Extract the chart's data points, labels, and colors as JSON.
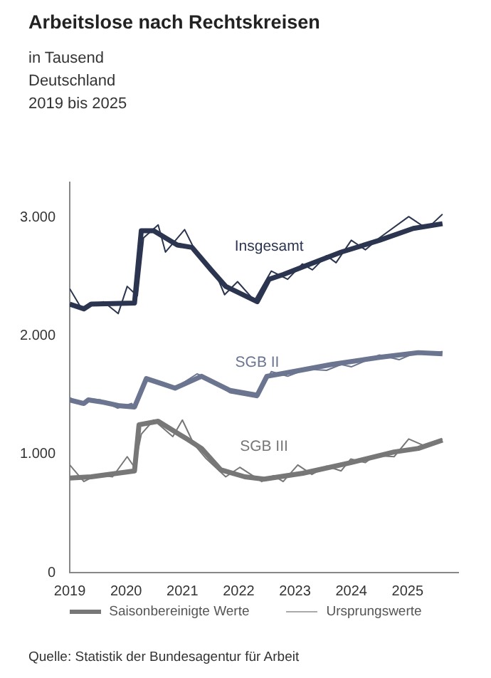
{
  "chart_data": {
    "type": "line",
    "title": "Arbeitslose nach Rechtskreisen",
    "subtitle": "in Tausend\nDeutschland\n2019 bis 2025",
    "xlim": [
      2019,
      2025.9
    ],
    "xticks": [
      2019,
      2020,
      2021,
      2022,
      2023,
      2024,
      2025
    ],
    "ylim": [
      0,
      3300
    ],
    "yticks": [
      0,
      {
        "value": 1000,
        "label": "1.000"
      },
      {
        "value": 2000,
        "label": "2.000"
      },
      {
        "value": 3000,
        "label": "3.000"
      }
    ],
    "grid": false,
    "annotations": [
      "Saisonbereinigte Werte",
      "Ursprungswerte",
      "Quelle: Statistik der Bundesagentur für Arbeit"
    ],
    "series": [
      {
        "name": "Insgesamt",
        "color": "#2b3550",
        "x": [
          2019.0,
          2019.25,
          2019.38,
          2020.15,
          2020.27,
          2020.49,
          2020.91,
          2021.17,
          2021.51,
          2021.77,
          2022.33,
          2022.54,
          2022.79,
          2023.22,
          2023.82,
          2024.5,
          2025.1,
          2025.62
        ],
        "values": [
          2270,
          2230,
          2270,
          2280,
          2890,
          2890,
          2770,
          2750,
          2560,
          2420,
          2290,
          2480,
          2520,
          2600,
          2710,
          2810,
          2910,
          2950
        ]
      },
      {
        "color": "#2b3550",
        "x": [
          2019.0,
          2019.2,
          2019.6,
          2019.86,
          2020.02,
          2020.2,
          2020.31,
          2020.57,
          2020.7,
          2021.04,
          2021.26,
          2021.6,
          2021.75,
          2021.98,
          2022.28,
          2022.58,
          2022.87,
          2023.13,
          2023.31,
          2023.56,
          2023.73,
          2024.0,
          2024.25,
          2024.5,
          2025.02,
          2025.27,
          2025.44,
          2025.62
        ],
        "values": [
          2400,
          2240,
          2290,
          2190,
          2420,
          2340,
          2830,
          2940,
          2710,
          2900,
          2690,
          2520,
          2350,
          2460,
          2300,
          2550,
          2480,
          2610,
          2560,
          2680,
          2620,
          2810,
          2730,
          2830,
          3010,
          2930,
          2950,
          3030
        ]
      },
      {
        "name": "SGB II",
        "color": "#6b7590",
        "x": [
          2019.0,
          2019.25,
          2019.33,
          2019.6,
          2019.89,
          2020.15,
          2020.36,
          2020.62,
          2020.87,
          2021.34,
          2021.85,
          2022.33,
          2022.5,
          2022.97,
          2023.65,
          2024.5,
          2025.19,
          2025.62
        ],
        "values": [
          1460,
          1430,
          1460,
          1440,
          1410,
          1400,
          1640,
          1600,
          1560,
          1660,
          1540,
          1500,
          1660,
          1700,
          1760,
          1820,
          1860,
          1850
        ]
      },
      {
        "color": "#6b7590",
        "x": [
          2019.0,
          2019.2,
          2019.35,
          2019.55,
          2019.85,
          2020.1,
          2020.15,
          2020.36,
          2020.57,
          2020.87,
          2021.26,
          2021.47,
          2021.85,
          2022.33,
          2022.58,
          2022.87,
          2023.2,
          2023.56,
          2023.82,
          2024.0,
          2024.5,
          2024.85,
          2025.19,
          2025.44,
          2025.62
        ],
        "values": [
          1480,
          1420,
          1470,
          1460,
          1390,
          1430,
          1390,
          1650,
          1600,
          1560,
          1680,
          1640,
          1520,
          1480,
          1700,
          1660,
          1720,
          1710,
          1760,
          1740,
          1840,
          1800,
          1870,
          1850,
          1870
        ]
      },
      {
        "name": "SGB III",
        "color": "#777777",
        "x": [
          2019.0,
          2019.38,
          2020.15,
          2020.23,
          2020.57,
          2021.08,
          2021.34,
          2021.68,
          2022.11,
          2022.45,
          2023.14,
          2023.99,
          2024.76,
          2025.19,
          2025.62
        ],
        "values": [
          800,
          810,
          860,
          1250,
          1280,
          1130,
          1050,
          870,
          810,
          790,
          840,
          930,
          1020,
          1050,
          1120
        ]
      },
      {
        "color": "#777777",
        "x": [
          2019.0,
          2019.25,
          2019.5,
          2019.76,
          2020.02,
          2020.15,
          2020.27,
          2020.49,
          2020.83,
          2021.0,
          2021.2,
          2021.41,
          2021.77,
          2022.02,
          2022.41,
          2022.62,
          2022.79,
          2023.05,
          2023.3,
          2023.56,
          2023.82,
          2023.99,
          2024.25,
          2024.42,
          2024.76,
          2025.02,
          2025.31,
          2025.62
        ],
        "values": [
          910,
          770,
          830,
          810,
          980,
          890,
          1170,
          1290,
          1150,
          1290,
          1090,
          970,
          810,
          890,
          770,
          820,
          770,
          910,
          830,
          900,
          860,
          960,
          930,
          990,
          980,
          1130,
          1070,
          1130
        ]
      }
    ]
  }
}
